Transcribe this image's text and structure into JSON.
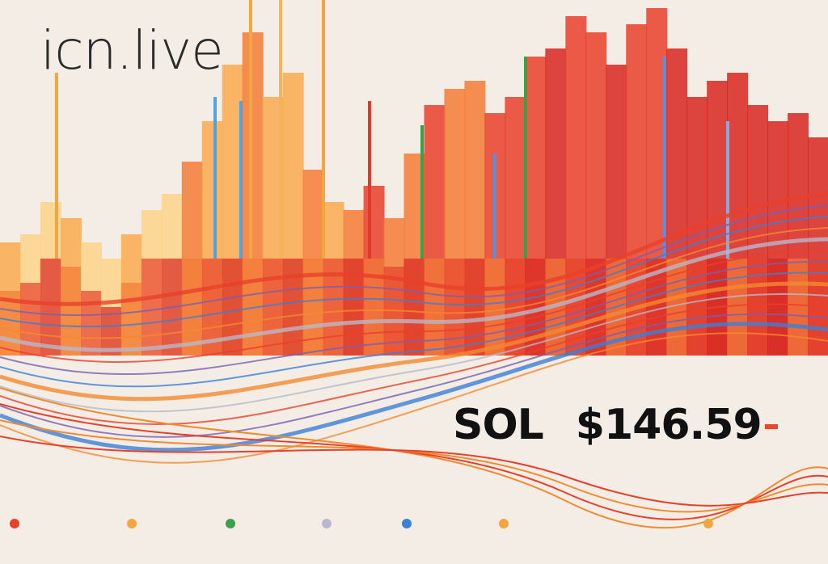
{
  "brand": {
    "logo_text": "icn.live"
  },
  "quote": {
    "symbol": "SOL",
    "price": "$146.59",
    "change_indicator_color": "#f0452a"
  },
  "colors": {
    "background": "#f3ede6",
    "bars_warm": [
      "#fbd38a",
      "#f9a94e",
      "#f47b36",
      "#e8402a",
      "#d8261e"
    ],
    "lines": [
      "#e8402a",
      "#7a5fb0",
      "#3b7fd6",
      "#f28a30",
      "#b8b8c8"
    ]
  }
}
